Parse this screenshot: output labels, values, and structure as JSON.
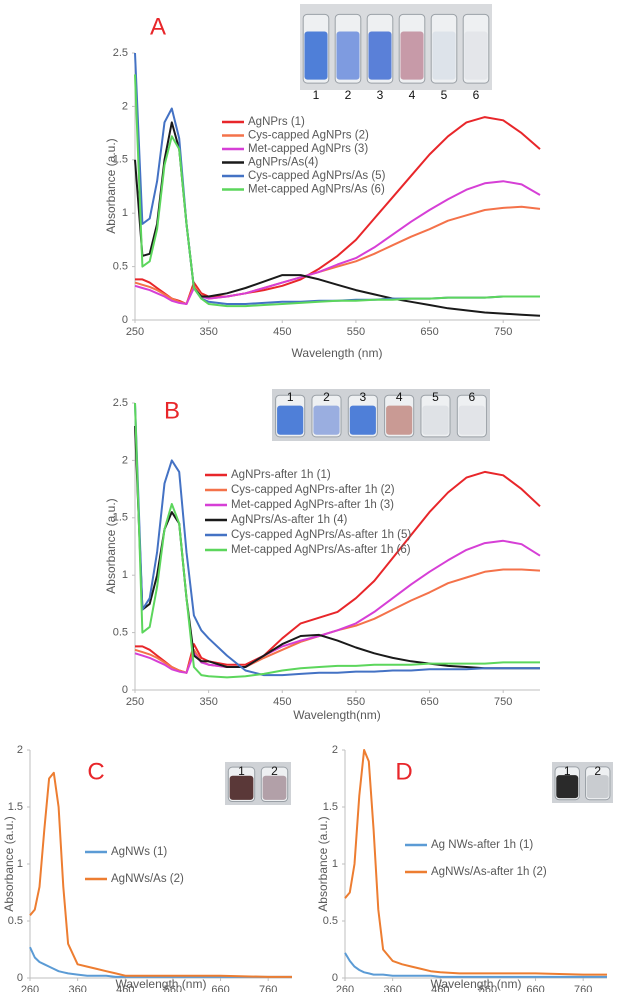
{
  "chart_data": [
    {
      "type": "line",
      "panel_label": "A",
      "xlabel": "Wavelength (nm)",
      "ylabel": "Absorbance (a.u.)",
      "legend": "center",
      "inset_labels": [
        "1",
        "2",
        "3",
        "4",
        "5",
        "6"
      ],
      "xlim": [
        250,
        800
      ],
      "ylim": [
        0,
        2.5
      ],
      "xticks": [
        250,
        350,
        450,
        550,
        650,
        750
      ],
      "yticks": [
        0,
        0.5,
        1,
        1.5,
        2,
        2.5
      ],
      "x": [
        250,
        260,
        270,
        280,
        290,
        300,
        310,
        320,
        330,
        340,
        350,
        375,
        400,
        425,
        450,
        475,
        500,
        525,
        550,
        575,
        600,
        625,
        650,
        675,
        700,
        725,
        750,
        775,
        800
      ],
      "series": [
        {
          "name": "AgNPrs (1)",
          "color": "#e8262a",
          "values": [
            0.38,
            0.38,
            0.35,
            0.3,
            0.25,
            0.2,
            0.18,
            0.15,
            0.35,
            0.25,
            0.22,
            0.22,
            0.25,
            0.28,
            0.32,
            0.38,
            0.48,
            0.6,
            0.75,
            0.95,
            1.15,
            1.35,
            1.55,
            1.72,
            1.85,
            1.9,
            1.87,
            1.75,
            1.6
          ]
        },
        {
          "name": "Cys-capped AgNPrs (2)",
          "color": "#f4724a",
          "values": [
            0.35,
            0.33,
            0.31,
            0.28,
            0.24,
            0.2,
            0.17,
            0.15,
            0.32,
            0.23,
            0.2,
            0.22,
            0.25,
            0.3,
            0.35,
            0.4,
            0.45,
            0.5,
            0.55,
            0.62,
            0.7,
            0.78,
            0.85,
            0.93,
            0.98,
            1.03,
            1.05,
            1.06,
            1.04
          ]
        },
        {
          "name": "Met-capped AgNPrs (3)",
          "color": "#d63fd6",
          "values": [
            0.32,
            0.3,
            0.28,
            0.25,
            0.22,
            0.18,
            0.16,
            0.15,
            0.3,
            0.22,
            0.2,
            0.22,
            0.25,
            0.3,
            0.35,
            0.4,
            0.45,
            0.52,
            0.58,
            0.68,
            0.8,
            0.92,
            1.03,
            1.13,
            1.22,
            1.28,
            1.3,
            1.27,
            1.17
          ]
        },
        {
          "name": "AgNPrs/As(4)",
          "color": "#1a1a1a",
          "values": [
            1.5,
            0.6,
            0.62,
            0.9,
            1.5,
            1.85,
            1.6,
            0.9,
            0.3,
            0.22,
            0.22,
            0.25,
            0.3,
            0.36,
            0.42,
            0.42,
            0.38,
            0.33,
            0.28,
            0.24,
            0.2,
            0.17,
            0.14,
            0.11,
            0.09,
            0.07,
            0.06,
            0.05,
            0.04
          ]
        },
        {
          "name": "Cys-capped AgNPrs/As (5)",
          "color": "#4472c4",
          "values": [
            2.5,
            0.9,
            0.95,
            1.3,
            1.85,
            1.98,
            1.7,
            0.9,
            0.3,
            0.2,
            0.17,
            0.15,
            0.15,
            0.16,
            0.17,
            0.17,
            0.18,
            0.18,
            0.19,
            0.19,
            0.2,
            0.2,
            0.2,
            0.21,
            0.21,
            0.21,
            0.22,
            0.22,
            0.22
          ]
        },
        {
          "name": "Met-capped AgNPrs/As (6)",
          "color": "#5cd65c",
          "values": [
            2.3,
            0.5,
            0.55,
            0.85,
            1.45,
            1.72,
            1.6,
            0.9,
            0.3,
            0.2,
            0.15,
            0.13,
            0.13,
            0.14,
            0.15,
            0.16,
            0.17,
            0.18,
            0.18,
            0.19,
            0.19,
            0.2,
            0.2,
            0.21,
            0.21,
            0.21,
            0.22,
            0.22,
            0.22
          ]
        }
      ]
    },
    {
      "type": "line",
      "panel_label": "B",
      "xlabel": "Wavelength(nm)",
      "ylabel": "Absorbance (a.u.)",
      "legend": "center",
      "inset_labels": [
        "1",
        "2",
        "3",
        "4",
        "5",
        "6"
      ],
      "xlim": [
        250,
        800
      ],
      "ylim": [
        0,
        2.5
      ],
      "xticks": [
        250,
        350,
        450,
        550,
        650,
        750
      ],
      "yticks": [
        0,
        0.5,
        1,
        1.5,
        2,
        2.5
      ],
      "x": [
        250,
        260,
        270,
        280,
        290,
        300,
        310,
        320,
        330,
        340,
        350,
        375,
        400,
        425,
        450,
        475,
        500,
        525,
        550,
        575,
        600,
        625,
        650,
        675,
        700,
        725,
        750,
        775,
        800
      ],
      "series": [
        {
          "name": "AgNPrs-after 1h (1)",
          "color": "#e8262a",
          "values": [
            0.38,
            0.38,
            0.35,
            0.3,
            0.25,
            0.2,
            0.17,
            0.15,
            0.4,
            0.28,
            0.25,
            0.22,
            0.22,
            0.3,
            0.45,
            0.58,
            0.63,
            0.68,
            0.8,
            0.95,
            1.15,
            1.35,
            1.55,
            1.72,
            1.85,
            1.9,
            1.87,
            1.75,
            1.6
          ]
        },
        {
          "name": "Cys-capped AgNPrs-after 1h (2)",
          "color": "#f4724a",
          "values": [
            0.35,
            0.33,
            0.31,
            0.28,
            0.24,
            0.2,
            0.17,
            0.15,
            0.35,
            0.25,
            0.22,
            0.2,
            0.2,
            0.28,
            0.35,
            0.42,
            0.47,
            0.52,
            0.56,
            0.62,
            0.7,
            0.78,
            0.85,
            0.93,
            0.98,
            1.03,
            1.05,
            1.05,
            1.04
          ]
        },
        {
          "name": "Met-capped AgNPrs-after 1h (3)",
          "color": "#d63fd6",
          "values": [
            0.32,
            0.3,
            0.28,
            0.25,
            0.22,
            0.18,
            0.16,
            0.15,
            0.32,
            0.24,
            0.22,
            0.2,
            0.2,
            0.3,
            0.38,
            0.43,
            0.47,
            0.52,
            0.58,
            0.68,
            0.8,
            0.92,
            1.03,
            1.13,
            1.22,
            1.28,
            1.3,
            1.27,
            1.17
          ]
        },
        {
          "name": "AgNPrs/As-after 1h (4)",
          "color": "#1a1a1a",
          "values": [
            2.3,
            0.7,
            0.75,
            1.0,
            1.4,
            1.55,
            1.45,
            0.8,
            0.3,
            0.25,
            0.25,
            0.2,
            0.2,
            0.3,
            0.4,
            0.47,
            0.48,
            0.43,
            0.37,
            0.32,
            0.28,
            0.25,
            0.23,
            0.21,
            0.2,
            0.19,
            0.19,
            0.19,
            0.19
          ]
        },
        {
          "name": "Cys-capped AgNPrs/As-after 1h (5)",
          "color": "#4472c4",
          "values": [
            2.5,
            0.7,
            0.8,
            1.2,
            1.8,
            2.0,
            1.9,
            1.2,
            0.65,
            0.52,
            0.45,
            0.3,
            0.17,
            0.13,
            0.13,
            0.14,
            0.15,
            0.15,
            0.16,
            0.16,
            0.17,
            0.17,
            0.18,
            0.18,
            0.18,
            0.19,
            0.19,
            0.19,
            0.19
          ]
        },
        {
          "name": "Met-capped AgNPrs/As-after 1h (6)",
          "color": "#5cd65c",
          "values": [
            2.5,
            0.5,
            0.55,
            0.9,
            1.4,
            1.62,
            1.45,
            0.8,
            0.2,
            0.13,
            0.12,
            0.11,
            0.12,
            0.14,
            0.17,
            0.19,
            0.2,
            0.21,
            0.21,
            0.22,
            0.22,
            0.22,
            0.23,
            0.23,
            0.23,
            0.23,
            0.24,
            0.24,
            0.24
          ]
        }
      ]
    },
    {
      "type": "line",
      "panel_label": "C",
      "xlabel": "Wavelength (nm)",
      "ylabel": "Absorbance (a.u.)",
      "legend": "center",
      "inset_labels": [
        "1",
        "2"
      ],
      "xlim": [
        260,
        810
      ],
      "ylim": [
        0,
        2
      ],
      "xticks": [
        260,
        360,
        460,
        560,
        660,
        760
      ],
      "yticks": [
        0,
        0.5,
        1,
        1.5,
        2
      ],
      "x": [
        260,
        270,
        280,
        290,
        300,
        310,
        320,
        330,
        340,
        360,
        380,
        400,
        420,
        440,
        460,
        500,
        560,
        660,
        760,
        810
      ],
      "series": [
        {
          "name": "AgNWs (1)",
          "color": "#5b9bd5",
          "values": [
            0.27,
            0.18,
            0.14,
            0.12,
            0.1,
            0.08,
            0.06,
            0.05,
            0.04,
            0.03,
            0.02,
            0.02,
            0.02,
            0.01,
            0.01,
            0.01,
            0.01,
            0.01,
            0.01,
            0.01
          ]
        },
        {
          "name": "AgNWs/As (2)",
          "color": "#ed7d31",
          "values": [
            0.55,
            0.6,
            0.8,
            1.3,
            1.75,
            1.8,
            1.5,
            0.8,
            0.3,
            0.12,
            0.1,
            0.08,
            0.06,
            0.04,
            0.02,
            0.02,
            0.02,
            0.02,
            0.01,
            0.01
          ]
        }
      ]
    },
    {
      "type": "line",
      "panel_label": "D",
      "xlabel": "Wavelength (nm)",
      "ylabel": "Absorbance (a.u.)",
      "legend": "center",
      "inset_labels": [
        "1",
        "2"
      ],
      "xlim": [
        260,
        810
      ],
      "ylim": [
        0,
        2
      ],
      "xticks": [
        260,
        360,
        460,
        560,
        660,
        760
      ],
      "yticks": [
        0,
        0.5,
        1,
        1.5,
        2
      ],
      "x": [
        260,
        270,
        280,
        290,
        300,
        310,
        320,
        330,
        340,
        360,
        380,
        400,
        420,
        440,
        460,
        500,
        560,
        660,
        760,
        810
      ],
      "series": [
        {
          "name": "Ag NWs-after 1h (1)",
          "color": "#5b9bd5",
          "values": [
            0.22,
            0.15,
            0.1,
            0.07,
            0.05,
            0.04,
            0.03,
            0.03,
            0.03,
            0.02,
            0.02,
            0.02,
            0.02,
            0.02,
            0.01,
            0.01,
            0.01,
            0.01,
            0.01,
            0.01
          ]
        },
        {
          "name": "AgNWs/As-after 1h (2)",
          "color": "#ed7d31",
          "values": [
            0.7,
            0.75,
            1.0,
            1.6,
            2.0,
            1.9,
            1.3,
            0.6,
            0.25,
            0.15,
            0.12,
            0.1,
            0.08,
            0.06,
            0.05,
            0.04,
            0.04,
            0.04,
            0.03,
            0.03
          ]
        }
      ]
    }
  ]
}
